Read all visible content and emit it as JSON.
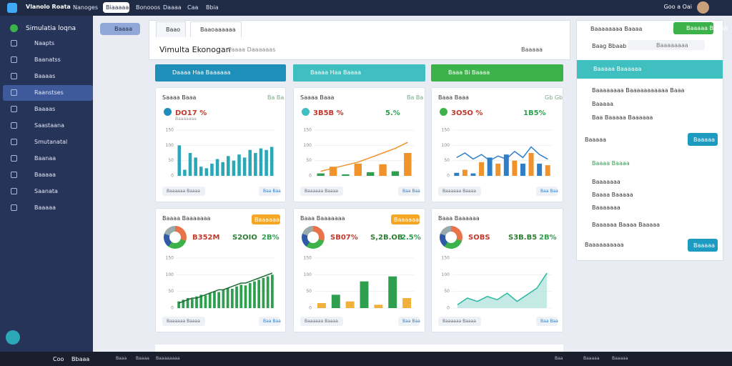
{
  "topbar": {
    "brand": "Vlanolo Roata",
    "tabs": [
      "Nanoges",
      "Biaaaaa",
      "Bonooos",
      "Daaaa",
      "Caa",
      "Bbia"
    ],
    "user": "Goo a Oai"
  },
  "sidebar": {
    "title": "Simulatia loqna",
    "items": [
      "Naapts",
      "Baanatss",
      "Baaaas",
      "Raanstses",
      "Baaaas",
      "Saastaana",
      "Smutanatal",
      "Baanaa",
      "Baaaaa",
      "Saanata",
      "Baaaaa"
    ]
  },
  "top_button": "Baaaa",
  "tabs": [
    "Baao",
    "Baaoaaaaaa"
  ],
  "header": {
    "title": "Vimulta Ekonogan",
    "subtitle": "Paaaa Daaaaaas",
    "action": "Baaaaa"
  },
  "banners": [
    "Daaaa Haa Baaaaaa",
    "Baaaa Haa Baaaa",
    "Baaa Bi Baaaa"
  ],
  "cards": [
    {
      "title": "Saaaa Baaa",
      "tag": "Ba Ba",
      "stat": "DO17 %",
      "stat_sub": "Baaaaaaa",
      "foot_left": "Baaaaaa Baaaa",
      "foot_right": "Baa Baa",
      "ylim": [
        0,
        150
      ],
      "yticks": [
        0,
        50,
        100,
        150
      ],
      "bar_colors": [
        "#2aa8b8"
      ],
      "bars": [
        100,
        20,
        75,
        60,
        30,
        25,
        40,
        55,
        45,
        65,
        50,
        70,
        60,
        85,
        75,
        90,
        85,
        95
      ],
      "line": null
    },
    {
      "title": "Saaaa Baaa",
      "tag": "Ba Ba",
      "stat": "3B5B %",
      "change": "5.%",
      "foot_left": "Baaaaaa Baaaa",
      "foot_right": "Baa Baa",
      "ylim": [
        0,
        150
      ],
      "yticks": [
        0,
        50,
        100,
        150
      ],
      "bar_colors": [
        "#2e9e4f",
        "#f0932b"
      ],
      "bars": [
        8,
        30,
        5,
        40,
        12,
        38,
        15,
        75
      ],
      "line_color": "#f0932b",
      "line": [
        15,
        25,
        35,
        45,
        60,
        75,
        90,
        110
      ]
    },
    {
      "title": "Baaa Baaa",
      "tag": "Gb Gb",
      "stat": "3O5O %",
      "change": "1B5%",
      "foot_left": "Baaaaaa Baaaa",
      "foot_right": "Baa Baa",
      "ylim": [
        0,
        150
      ],
      "yticks": [
        0,
        50,
        100,
        150
      ],
      "bar_colors": [
        "#2f7fc8",
        "#f0932b"
      ],
      "bars": [
        10,
        20,
        8,
        45,
        60,
        40,
        70,
        50,
        40,
        75,
        40,
        35
      ],
      "line_color": "#2f7fc8",
      "line": [
        60,
        75,
        55,
        70,
        50,
        65,
        55,
        80,
        60,
        95,
        70,
        55
      ]
    },
    {
      "title": "Baaaa Baaaaaaa",
      "badge": "Baaaaaaa",
      "stat": "B352M",
      "value": "S2OIO",
      "change": "2B%",
      "foot_left": "Baaaaaa Baaaa",
      "foot_right": "Baa Baa",
      "ylim": [
        0,
        150
      ],
      "yticks": [
        0,
        50,
        100,
        150
      ],
      "bar_colors": [
        "#2e9e4f"
      ],
      "bars": [
        20,
        25,
        30,
        28,
        35,
        40,
        38,
        45,
        50,
        48,
        55,
        60,
        58,
        65,
        70,
        68,
        75,
        80,
        85,
        90,
        95,
        100
      ],
      "line_color": "#1d6b35",
      "line": [
        15,
        20,
        25,
        30,
        30,
        35,
        40,
        45,
        50,
        55,
        55,
        60,
        65,
        70,
        75,
        75,
        80,
        85,
        90,
        95,
        100,
        105
      ]
    },
    {
      "title": "Baaa Baaaaaaa",
      "badge": "Baaaaaaa",
      "stat": "SB07%",
      "value": "S,2B.OB",
      "change": "2.5%",
      "foot_left": "Baaaaaa Baaaa",
      "foot_right": "Baa Baa",
      "ylim": [
        0,
        150
      ],
      "yticks": [
        0,
        50,
        100,
        150
      ],
      "bar_colors": [
        "#f0b03b",
        "#2e9e4f"
      ],
      "bars": [
        15,
        40,
        20,
        80,
        10,
        95,
        30
      ],
      "line": null
    },
    {
      "title": "Baaa Baaaaaa",
      "stat": "SOBS",
      "value": "S3B.B5",
      "change": "2B%",
      "foot_left": "Baaaaaa Baaaa",
      "foot_right": "Baa Baa",
      "ylim": [
        0,
        150
      ],
      "yticks": [
        0,
        50,
        100,
        150
      ],
      "bar_colors": [
        "#9fdcd6"
      ],
      "bars": [
        10,
        30,
        20,
        35,
        25,
        45,
        20,
        40,
        60,
        105
      ],
      "line_color": "#2ab8a0",
      "line": [
        10,
        30,
        20,
        35,
        25,
        45,
        20,
        40,
        60,
        105
      ]
    }
  ],
  "right_panel": {
    "search": "Baaaaaaaa Baaaa",
    "button": "Baaaaa Baaaa",
    "filter": "Baag Bbaab",
    "filter_value": "Baaaaaaaa",
    "section1": "Baaaaa Baaaaaa",
    "items1": [
      "Baaaaaaaa Baaaaaaaaaaa Baaa",
      "Baaaaa",
      "Baa Baaaaa Baaaaaa"
    ],
    "label1": "Baaaaa",
    "button1": "Baaaaa",
    "section2": "Baaaa Baaaa",
    "items2": [
      "Baaaaaaa",
      "Baaaa Baaaaa",
      "Baaaaaaa",
      "Baaaaaa Baaaa Baaaaa"
    ],
    "label2": "Baaaaaaaaaa",
    "button2": "Baaaaa"
  },
  "taskbar": {
    "left": [
      "Coo",
      "Bbaaa"
    ],
    "mid": [
      "Baaa",
      "Baaaa",
      "Baaaaaaaa"
    ],
    "right": [
      "Baa",
      "Baaaaa",
      "Baaaaa"
    ]
  }
}
